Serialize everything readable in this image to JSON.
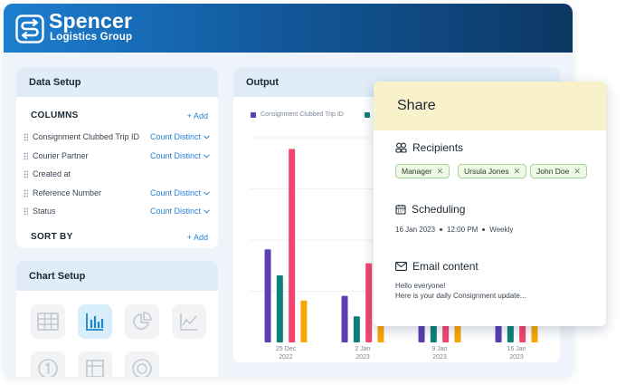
{
  "brand": {
    "name": "Spencer",
    "subtitle": "Logistics Group"
  },
  "data_setup": {
    "title": "Data Setup",
    "columns_title": "COLUMNS",
    "add_label": "+ Add",
    "columns": [
      {
        "name": "Consignment Clubbed Trip ID",
        "aggregation": "Count Distinct"
      },
      {
        "name": "Courier Partner",
        "aggregation": "Count Distinct"
      },
      {
        "name": "Created at",
        "aggregation": ""
      },
      {
        "name": "Reference Number",
        "aggregation": "Count Distinct"
      },
      {
        "name": "Status",
        "aggregation": "Count Distinct"
      }
    ],
    "sort_title": "SORT BY",
    "sort_add_label": "+ Add"
  },
  "chart_setup": {
    "title": "Chart Setup",
    "icons": [
      "table-icon",
      "bar-chart-icon",
      "pie-chart-icon",
      "line-chart-icon",
      "number-icon",
      "pivot-table-icon",
      "gauge-icon"
    ],
    "selected": "bar-chart-icon"
  },
  "output": {
    "title": "Output"
  },
  "chart_data": {
    "type": "bar",
    "categories": [
      "25 Dec 2022",
      "2 Jan 2023",
      "9 Jan 2023",
      "16 Jan 2023"
    ],
    "category_lines": [
      [
        "25 Dec",
        "2022"
      ],
      [
        "2 Jan",
        "2023"
      ],
      [
        "9 Jan",
        "2023"
      ],
      [
        "16 Jan",
        "2023"
      ]
    ],
    "series": [
      {
        "name": "Consignment Clubbed Trip ID",
        "color": "#5b3fb0",
        "values": [
          100,
          50,
          20,
          20
        ]
      },
      {
        "name": "",
        "color": "#0f8079",
        "values": [
          72,
          28,
          20,
          20
        ]
      },
      {
        "name": "",
        "color": "#f0466f",
        "values": [
          208,
          85,
          20,
          20
        ]
      },
      {
        "name": "",
        "color": "#f8a705",
        "values": [
          45,
          22,
          20,
          20
        ]
      }
    ],
    "ylim": [
      0,
      220
    ],
    "grid": true,
    "legend": "top"
  },
  "share": {
    "title": "Share",
    "recipients_title": "Recipients",
    "recipients": [
      "Manager",
      "Ursula Jones",
      "John Doe"
    ],
    "scheduling_title": "Scheduling",
    "schedule_date": "16 Jan 2023",
    "schedule_time": "12:00 PM",
    "schedule_freq": "Weekly",
    "email_title": "Email content",
    "email_line1": "Hello everyone!",
    "email_line2": "Here is your daily Consignment update..."
  }
}
